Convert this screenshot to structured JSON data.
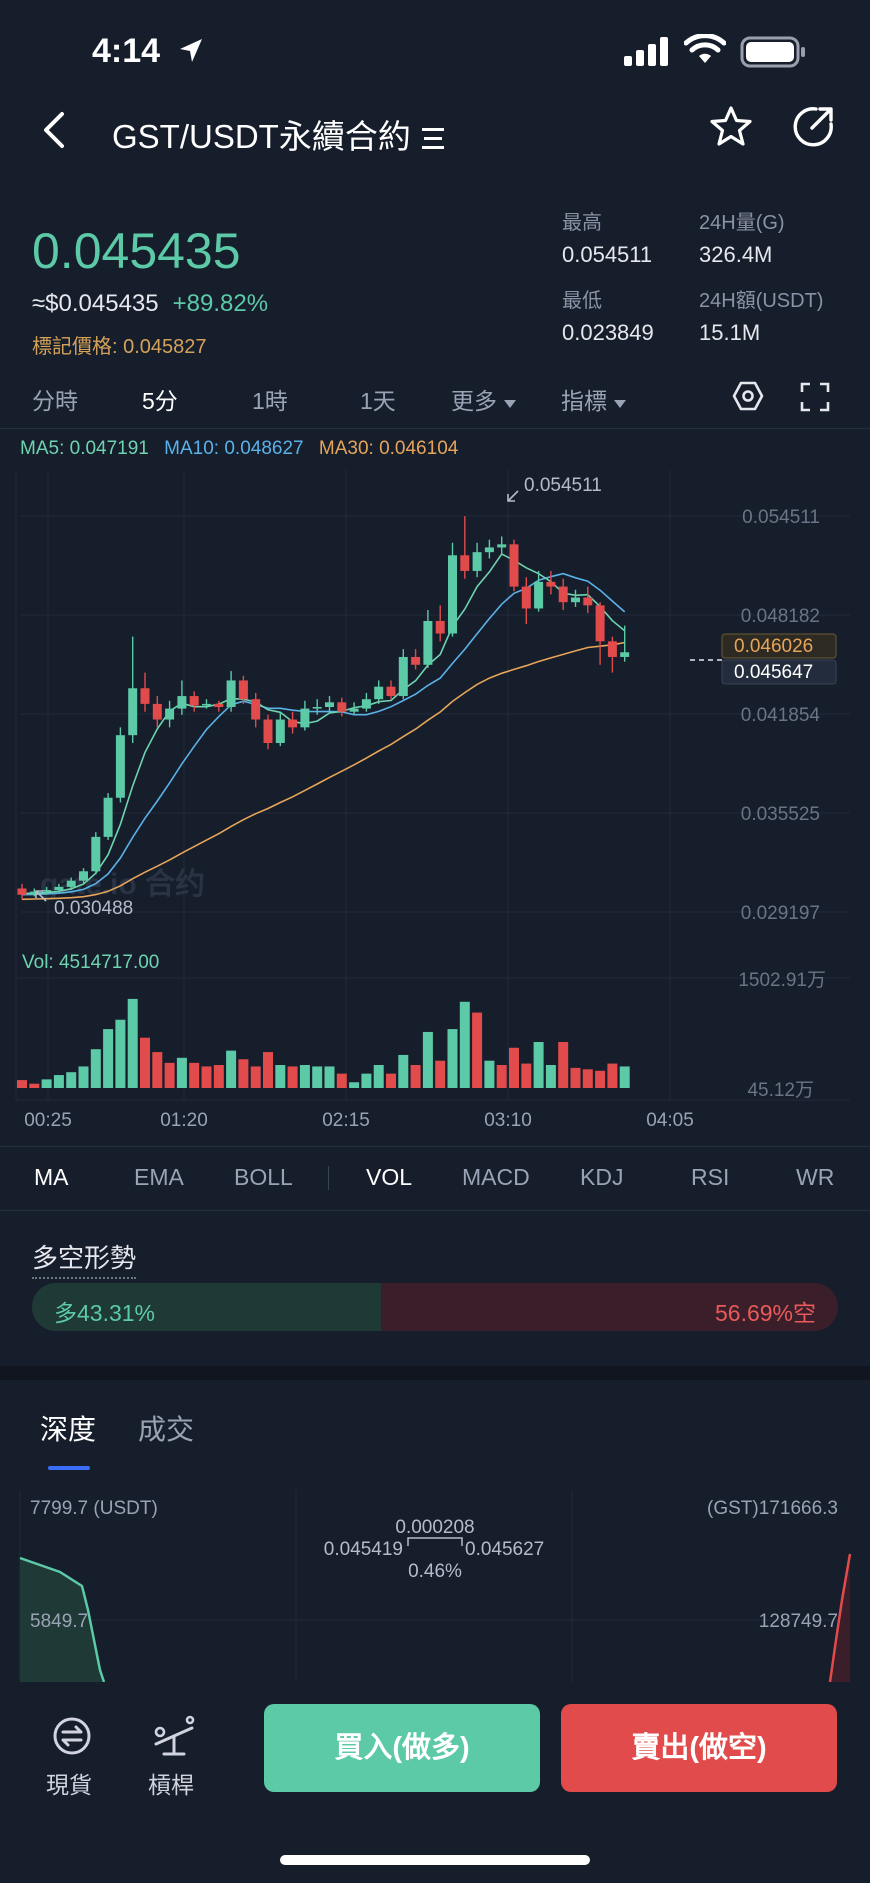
{
  "status": {
    "time": "4:14"
  },
  "header": {
    "title": "GST/USDT永續合約"
  },
  "ticker": {
    "last_price": "0.045435",
    "usd_price": "≈$0.045435",
    "change": "+89.82%",
    "mark_price_label": "標記價格:",
    "mark_price": "0.045827",
    "high_label": "最高",
    "high": "0.054511",
    "low_label": "最低",
    "low": "0.023849",
    "vol_label": "24H量(G)",
    "vol": "326.4M",
    "amount_label": "24H額(USDT)",
    "amount": "15.1M"
  },
  "timeframes": [
    "分時",
    "5分",
    "1時",
    "1天",
    "更多",
    "指標"
  ],
  "active_timeframe": "5分",
  "ma_legend": {
    "ma5": "MA5: 0.047191",
    "ma10": "MA10: 0.048627",
    "ma30": "MA30: 0.046104"
  },
  "watermark": "gate.io 合约",
  "vol_readout": "Vol: 4514717.00",
  "indicator_tabs": [
    "MA",
    "EMA",
    "BOLL",
    "VOL",
    "MACD",
    "KDJ",
    "RSI",
    "WR"
  ],
  "colors": {
    "up": "#5cc9a7",
    "down": "#e24b4b",
    "ma5": "#6fd3b0",
    "ma10": "#5ab2e8",
    "ma30": "#e7a55a",
    "bg": "#161d2b"
  },
  "long_short": {
    "title": "多空形勢",
    "long": "多43.31%",
    "short": "56.69%空",
    "long_pct": 43.31
  },
  "depth_tabs": [
    "深度",
    "成交"
  ],
  "depth": {
    "left_top": "7799.7 (USDT)",
    "left_mid": "5849.7",
    "right_top": "(GST)171666.3",
    "right_mid": "128749.7",
    "spread": "0.000208",
    "bid": "0.045419",
    "ask": "0.045627",
    "spread_pct": "0.46%"
  },
  "bottom_nav": {
    "spot": "現貨",
    "leverage": "槓桿"
  },
  "buttons": {
    "buy": "買入(做多)",
    "sell": "賣出(做空)"
  },
  "chart_data": {
    "type": "candlestick",
    "y_axis_labels": [
      "0.054511",
      "0.048182",
      "0.041854",
      "0.035525",
      "0.029197"
    ],
    "ylim": [
      0.029197,
      0.054511
    ],
    "x_axis_labels": [
      "00:25",
      "01:20",
      "02:15",
      "03:10",
      "04:05"
    ],
    "high_marker": "0.054511",
    "low_marker": "0.030488",
    "price_tags": [
      "0.046026",
      "0.045647"
    ],
    "volume_axis_labels": [
      "1502.91万",
      "45.12万"
    ],
    "candles": [
      [
        0.0307,
        0.0303,
        0.031,
        0.03
      ],
      [
        0.0303,
        0.0305,
        0.0307,
        0.0302
      ],
      [
        0.0305,
        0.0306,
        0.0308,
        0.0303
      ],
      [
        0.0306,
        0.0308,
        0.031,
        0.0304
      ],
      [
        0.0308,
        0.0312,
        0.0314,
        0.0306
      ],
      [
        0.0312,
        0.0318,
        0.032,
        0.031
      ],
      [
        0.0318,
        0.034,
        0.0343,
        0.0316
      ],
      [
        0.034,
        0.0365,
        0.0368,
        0.0338
      ],
      [
        0.0365,
        0.0405,
        0.041,
        0.0362
      ],
      [
        0.0405,
        0.0435,
        0.0468,
        0.04
      ],
      [
        0.0435,
        0.0425,
        0.0445,
        0.042
      ],
      [
        0.0425,
        0.0415,
        0.043,
        0.041
      ],
      [
        0.0415,
        0.0422,
        0.0427,
        0.041
      ],
      [
        0.0422,
        0.043,
        0.044,
        0.0418
      ],
      [
        0.043,
        0.0424,
        0.0433,
        0.042
      ],
      [
        0.0424,
        0.0425,
        0.0428,
        0.0422
      ],
      [
        0.0425,
        0.0423,
        0.0427,
        0.042
      ],
      [
        0.0423,
        0.044,
        0.0446,
        0.042
      ],
      [
        0.044,
        0.0428,
        0.0443,
        0.0425
      ],
      [
        0.0428,
        0.0415,
        0.0432,
        0.041
      ],
      [
        0.0415,
        0.04,
        0.0418,
        0.0396
      ],
      [
        0.04,
        0.0415,
        0.042,
        0.0398
      ],
      [
        0.0415,
        0.041,
        0.042,
        0.0406
      ],
      [
        0.041,
        0.0422,
        0.0427,
        0.0408
      ],
      [
        0.0422,
        0.0423,
        0.0428,
        0.0418
      ],
      [
        0.0423,
        0.0426,
        0.043,
        0.042
      ],
      [
        0.0426,
        0.042,
        0.0429,
        0.0417
      ],
      [
        0.042,
        0.0422,
        0.0426,
        0.0418
      ],
      [
        0.0422,
        0.0428,
        0.0432,
        0.042
      ],
      [
        0.0428,
        0.0436,
        0.044,
        0.0425
      ],
      [
        0.0436,
        0.043,
        0.044,
        0.0428
      ],
      [
        0.043,
        0.0455,
        0.046,
        0.0428
      ],
      [
        0.0455,
        0.045,
        0.046,
        0.0447
      ],
      [
        0.045,
        0.0478,
        0.0485,
        0.0448
      ],
      [
        0.0478,
        0.047,
        0.0488,
        0.0465
      ],
      [
        0.047,
        0.052,
        0.0528,
        0.0468
      ],
      [
        0.052,
        0.051,
        0.0545,
        0.0505
      ],
      [
        0.051,
        0.0522,
        0.0528,
        0.0506
      ],
      [
        0.0522,
        0.0525,
        0.053,
        0.0518
      ],
      [
        0.0525,
        0.0527,
        0.0532,
        0.052
      ],
      [
        0.0527,
        0.05,
        0.053,
        0.0497
      ],
      [
        0.05,
        0.0486,
        0.0506,
        0.0476
      ],
      [
        0.0486,
        0.0503,
        0.051,
        0.0484
      ],
      [
        0.0503,
        0.05,
        0.051,
        0.0495
      ],
      [
        0.05,
        0.049,
        0.0505,
        0.0485
      ],
      [
        0.049,
        0.0493,
        0.0498,
        0.0487
      ],
      [
        0.0493,
        0.0488,
        0.05,
        0.0483
      ],
      [
        0.0488,
        0.0465,
        0.049,
        0.045
      ],
      [
        0.0465,
        0.0455,
        0.0468,
        0.0445
      ],
      [
        0.0455,
        0.0458,
        0.0475,
        0.0452
      ]
    ],
    "volume": [
      [
        1.1,
        0
      ],
      [
        0.6,
        0
      ],
      [
        1.2,
        1
      ],
      [
        1.8,
        1
      ],
      [
        2.2,
        1
      ],
      [
        3.0,
        1
      ],
      [
        5.4,
        1
      ],
      [
        8.2,
        1
      ],
      [
        9.5,
        1
      ],
      [
        12.4,
        1
      ],
      [
        7.0,
        0
      ],
      [
        5.0,
        0
      ],
      [
        3.5,
        0
      ],
      [
        4.2,
        1
      ],
      [
        3.5,
        0
      ],
      [
        3.0,
        0
      ],
      [
        3.2,
        0
      ],
      [
        5.2,
        1
      ],
      [
        4.0,
        0
      ],
      [
        3.0,
        0
      ],
      [
        5.0,
        0
      ],
      [
        3.2,
        1
      ],
      [
        3.0,
        0
      ],
      [
        3.2,
        1
      ],
      [
        3.0,
        1
      ],
      [
        3.0,
        1
      ],
      [
        2.0,
        0
      ],
      [
        0.8,
        1
      ],
      [
        2.0,
        1
      ],
      [
        3.2,
        1
      ],
      [
        2.0,
        0
      ],
      [
        4.6,
        1
      ],
      [
        3.2,
        0
      ],
      [
        7.8,
        1
      ],
      [
        3.8,
        0
      ],
      [
        8.2,
        1
      ],
      [
        12.0,
        1
      ],
      [
        10.5,
        0
      ],
      [
        3.8,
        1
      ],
      [
        3.2,
        0
      ],
      [
        5.6,
        0
      ],
      [
        3.4,
        0
      ],
      [
        6.4,
        1
      ],
      [
        3.2,
        1
      ],
      [
        6.4,
        0
      ],
      [
        2.8,
        0
      ],
      [
        2.6,
        0
      ],
      [
        2.4,
        0
      ],
      [
        3.4,
        0
      ],
      [
        3.0,
        1
      ]
    ]
  }
}
